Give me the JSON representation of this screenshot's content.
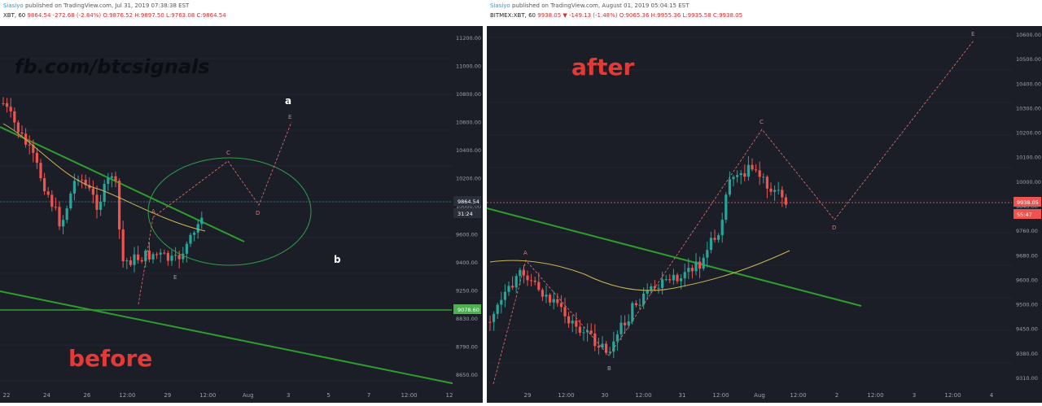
{
  "chart_data": [
    {
      "type": "candlestick",
      "caption": "before",
      "watermark": "fb.com/btcsignals",
      "header": {
        "author": "Siasiyo",
        "published": "published on TradingView.com, Jul 31, 2019 07:38:38 EST",
        "symbol": "XBT, 60",
        "ohlc": "9864.54 -272.68 (-2.84%) O:9876.52 H:9897.50 L:9763.08 C:9864.54"
      },
      "y_ticks": [
        "11200.00",
        "11000.00",
        "10800.00",
        "10600.00",
        "10400.00",
        "10200.00",
        "10000.00",
        "9600.00",
        "9400.00",
        "9250.00",
        "8830.00",
        "8790.00",
        "8650.00"
      ],
      "x_ticks": [
        "22",
        "24",
        "26",
        "12:00",
        "29",
        "12:00",
        "Aug",
        "3",
        "5",
        "7",
        "12:00",
        "12"
      ],
      "price_labels": [
        "9864.54",
        "31:24",
        "9078.60"
      ],
      "wave_labels": [
        "A",
        "C",
        "D",
        "E",
        "E",
        "a",
        "b"
      ],
      "colors": {
        "up": "#26a69a",
        "down": "#ef5350",
        "trend": "#2e9d2e",
        "ma": "#c9b458",
        "circle": "#2e9d4a",
        "projection": "#e57373",
        "caption": "#e53935"
      }
    },
    {
      "type": "candlestick",
      "caption": "after",
      "header": {
        "author": "Siasiyo",
        "published": "published on TradingView.com, August 01, 2019 05:04:15 EST",
        "symbol": "BITMEX:XBT, 60",
        "ohlc": "9938.05 ▼ -149.13 (-1.48%) O:9065.36 H:9955.36 L:9935.58 C:9938.05"
      },
      "y_ticks": [
        "10600.00",
        "10500.00",
        "10400.00",
        "10300.00",
        "10200.00",
        "10100.00",
        "10000.00",
        "9840.00",
        "9760.00",
        "9680.00",
        "9600.00",
        "9500.00",
        "9450.00",
        "9380.00",
        "9310.00"
      ],
      "x_ticks": [
        "29",
        "12:00",
        "30",
        "12:00",
        "31",
        "12:00",
        "Aug",
        "12:00",
        "2",
        "12:00",
        "3",
        "12:00",
        "4"
      ],
      "price_labels": [
        "9938.05",
        "55:47"
      ],
      "wave_labels": [
        "A",
        "B",
        "C",
        "D",
        "E"
      ],
      "colors": {
        "up": "#26a69a",
        "down": "#ef5350",
        "trend": "#2e9d2e",
        "ma": "#c9b458",
        "projection": "#e57373",
        "caption": "#e53935"
      }
    }
  ]
}
